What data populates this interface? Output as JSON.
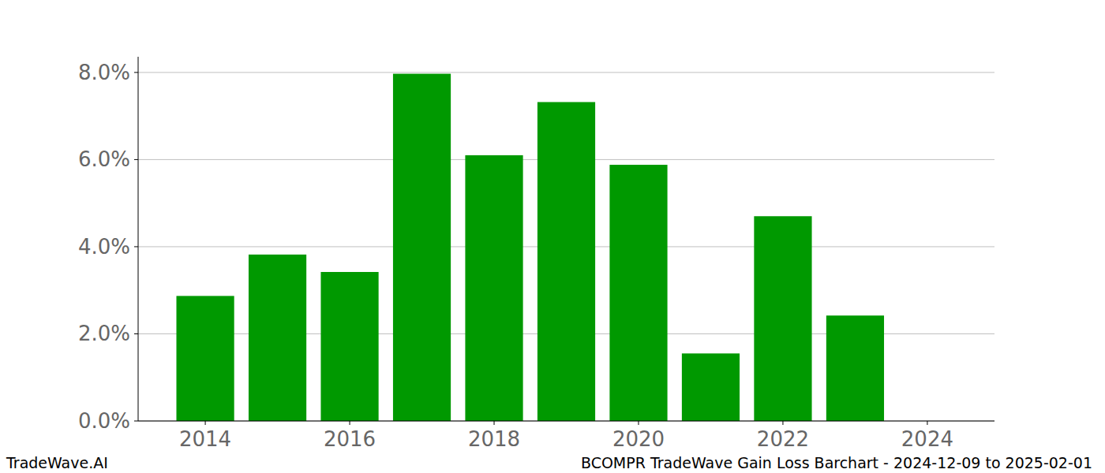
{
  "chart_data": {
    "type": "bar",
    "title": "BCOMPR TradeWave Gain Loss Barchart - 2024-12-09 to 2025-02-01",
    "annotations": [
      "TradeWave.AI"
    ],
    "x": [
      2014,
      2015,
      2016,
      2017,
      2018,
      2019,
      2020,
      2021,
      2022,
      2023
    ],
    "values": [
      2.87,
      3.82,
      3.42,
      7.97,
      6.1,
      7.32,
      5.88,
      1.55,
      4.7,
      2.42
    ],
    "color": "#009900",
    "xlim": [
      2013.07,
      2024.93
    ],
    "xticks": [
      2014,
      2016,
      2018,
      2020,
      2022,
      2024
    ],
    "ylim": [
      0,
      8.36
    ],
    "yticks": [
      {
        "value": 0,
        "label": "0.0%"
      },
      {
        "value": 2,
        "label": "2.0%"
      },
      {
        "value": 4,
        "label": "4.0%"
      },
      {
        "value": 6,
        "label": "6.0%"
      },
      {
        "value": 8,
        "label": "8.0%"
      }
    ],
    "grid": true
  }
}
